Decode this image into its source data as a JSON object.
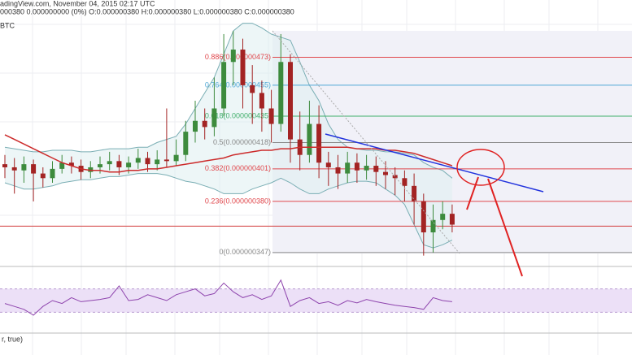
{
  "chart_data": {
    "type": "candlestick",
    "header": {
      "line1": "adingView.com, November 04, 2015 02:17 UTC",
      "line2": "000380 0.000000000 (0%) O:0.000000380 H:0.000000380 L:0.000000380 C:0.000000380",
      "symbol": "BTC"
    },
    "ylim": [
      3.38e-07,
      5.1e-07
    ],
    "up_color": "#3d8b3d",
    "down_color": "#a32323",
    "open": [
      4.04e-07,
      4.02e-07,
      4e-07,
      4.04e-07,
      3.98e-07,
      3.95e-07,
      4.01e-07,
      4.05e-07,
      4.03e-07,
      3.99e-07,
      4.02e-07,
      4.04e-07,
      4.06e-07,
      4.02e-07,
      4.05e-07,
      4.08e-07,
      4.04e-07,
      4.07e-07,
      4.06e-07,
      4.1e-07,
      4.25e-07,
      4.32e-07,
      4.28e-07,
      4.4e-07,
      4.7e-07,
      4.78e-07,
      4.55e-07,
      4.5e-07,
      4.4e-07,
      4.3e-07,
      4.7e-07,
      4.2e-07,
      4.1e-07,
      4.3e-07,
      4.05e-07,
      4.02e-07,
      3.98e-07,
      4.05e-07,
      4e-07,
      4.03e-07,
      3.99e-07,
      3.97e-07,
      3.95e-07,
      3.9e-07,
      3.8e-07,
      3.6e-07,
      3.68e-07,
      3.72e-07
    ],
    "high": [
      4.1e-07,
      4.08e-07,
      4.09e-07,
      4.07e-07,
      4.02e-07,
      4.06e-07,
      4.1e-07,
      4.09e-07,
      4.07e-07,
      4.06e-07,
      4.09e-07,
      4.12e-07,
      4.1e-07,
      4.09e-07,
      4.14e-07,
      4.12e-07,
      4.13e-07,
      4.4e-07,
      4.2e-07,
      4.32e-07,
      4.45e-07,
      4.4e-07,
      4.6e-07,
      4.88e-07,
      4.9e-07,
      4.85e-07,
      4.68e-07,
      4.58e-07,
      4.52e-07,
      4.88e-07,
      4.75e-07,
      4.38e-07,
      4.45e-07,
      4.42e-07,
      4.12e-07,
      4.1e-07,
      4.12e-07,
      4.11e-07,
      4.1e-07,
      4.09e-07,
      4.06e-07,
      4.02e-07,
      4e-07,
      3.98e-07,
      3.85e-07,
      3.78e-07,
      3.8e-07,
      3.78e-07
    ],
    "low": [
      3.95e-07,
      3.85e-07,
      3.92e-07,
      3.8e-07,
      3.89e-07,
      3.92e-07,
      3.98e-07,
      3.98e-07,
      3.94e-07,
      3.95e-07,
      3.98e-07,
      4e-07,
      3.97e-07,
      3.98e-07,
      4.01e-07,
      3.99e-07,
      4e-07,
      4.02e-07,
      4.03e-07,
      4.06e-07,
      4.18e-07,
      4.2e-07,
      4.22e-07,
      4.35e-07,
      4.55e-07,
      4.4e-07,
      4.3e-07,
      4.25e-07,
      4.18e-07,
      4.25e-07,
      4.05e-07,
      4e-07,
      4.05e-07,
      3.95e-07,
      3.9e-07,
      3.88e-07,
      3.92e-07,
      3.92e-07,
      3.94e-07,
      3.9e-07,
      3.88e-07,
      3.84e-07,
      3.8e-07,
      3.65e-07,
      3.45e-07,
      3.47e-07,
      3.62e-07,
      3.6e-07
    ],
    "close": [
      4.02e-07,
      4e-07,
      4.04e-07,
      3.98e-07,
      3.95e-07,
      4.01e-07,
      4.05e-07,
      4.03e-07,
      3.99e-07,
      4.02e-07,
      4.04e-07,
      4.06e-07,
      4.02e-07,
      4.05e-07,
      4.08e-07,
      4.04e-07,
      4.07e-07,
      4.06e-07,
      4.1e-07,
      4.25e-07,
      4.32e-07,
      4.28e-07,
      4.4e-07,
      4.7e-07,
      4.78e-07,
      4.55e-07,
      4.5e-07,
      4.4e-07,
      4.3e-07,
      4.7e-07,
      4.2e-07,
      4.1e-07,
      4.3e-07,
      4.05e-07,
      4.02e-07,
      3.98e-07,
      4.05e-07,
      4e-07,
      4.03e-07,
      3.99e-07,
      3.97e-07,
      3.95e-07,
      3.9e-07,
      3.8e-07,
      3.6e-07,
      3.68e-07,
      3.72e-07,
      3.65e-07
    ],
    "ma": {
      "color": "#cc2a2a",
      "values": [
        4.23e-07,
        4.2e-07,
        4.17e-07,
        4.14e-07,
        4.11e-07,
        4.08e-07,
        4.05e-07,
        4.03e-07,
        4.01e-07,
        4e-07,
        4e-07,
        3.99e-07,
        3.99e-07,
        4e-07,
        4e-07,
        4.01e-07,
        4.01e-07,
        4.02e-07,
        4.03e-07,
        4.04e-07,
        4.05e-07,
        4.06e-07,
        4.07e-07,
        4.08e-07,
        4.1e-07,
        4.11e-07,
        4.12e-07,
        4.13e-07,
        4.13e-07,
        4.14e-07,
        4.14e-07,
        4.15e-07,
        4.15e-07,
        4.15e-07,
        4.15e-07,
        4.15e-07,
        4.15e-07,
        4.14e-07,
        4.14e-07,
        4.14e-07,
        4.13e-07,
        4.13e-07,
        4.12e-07,
        4.11e-07,
        4.09e-07,
        4.07e-07,
        4.05e-07,
        4.03e-07
      ]
    },
    "upper_band": {
      "color": "#7aaeb4",
      "values": [
        4.15e-07,
        4.14e-07,
        4.13e-07,
        4.12e-07,
        4.12e-07,
        4.13e-07,
        4.13e-07,
        4.13e-07,
        4.12e-07,
        4.12e-07,
        4.13e-07,
        4.14e-07,
        4.14e-07,
        4.14e-07,
        4.15e-07,
        4.15e-07,
        4.18e-07,
        4.2e-07,
        4.22e-07,
        4.3e-07,
        4.4e-07,
        4.5e-07,
        4.6e-07,
        4.75e-07,
        4.9e-07,
        4.95e-07,
        4.95e-07,
        4.92e-07,
        4.88e-07,
        4.86e-07,
        4.84e-07,
        4.7e-07,
        4.55e-07,
        4.45e-07,
        4.3e-07,
        4.2e-07,
        4.15e-07,
        4.14e-07,
        4.13e-07,
        4.13e-07,
        4.12e-07,
        4.12e-07,
        4.11e-07,
        4.1e-07,
        4.05e-07,
        4.02e-07,
        4e-07,
        3.95e-07
      ]
    },
    "lower_band": {
      "color": "#7aaeb4",
      "values": [
        3.92e-07,
        3.9e-07,
        3.88e-07,
        3.88e-07,
        3.89e-07,
        3.9e-07,
        3.92e-07,
        3.93e-07,
        3.94e-07,
        3.94e-07,
        3.95e-07,
        3.96e-07,
        3.96e-07,
        3.97e-07,
        3.98e-07,
        3.98e-07,
        3.98e-07,
        3.97e-07,
        3.95e-07,
        3.93e-07,
        3.92e-07,
        3.9e-07,
        3.88e-07,
        3.85e-07,
        3.85e-07,
        3.85e-07,
        3.88e-07,
        3.9e-07,
        3.92e-07,
        3.95e-07,
        3.92e-07,
        3.88e-07,
        3.85e-07,
        3.85e-07,
        3.88e-07,
        3.9e-07,
        3.92e-07,
        3.93e-07,
        3.93e-07,
        3.92e-07,
        3.88e-07,
        3.84e-07,
        3.78e-07,
        3.65e-07,
        3.52e-07,
        3.5e-07,
        3.52e-07,
        3.55e-07
      ]
    },
    "fib_levels": [
      {
        "label": "0.886(0.000000473)",
        "value": 4.73e-07,
        "color": "#e0474c"
      },
      {
        "label": "0.764(0.000000455)",
        "value": 4.55e-07,
        "color": "#4fa8d6"
      },
      {
        "label": "0.618(0.000000435)",
        "value": 4.35e-07,
        "color": "#3fae6a"
      },
      {
        "label": "0.5(0.000000418)",
        "value": 4.18e-07,
        "color": "#888888"
      },
      {
        "label": "0.382(0.000000401)",
        "value": 4.01e-07,
        "color": "#e0474c"
      },
      {
        "label": "0.236(0.000000380)",
        "value": 3.8e-07,
        "color": "#e0474c"
      },
      {
        "label": "0(0.000000347)",
        "value": 3.47e-07,
        "color": "#888888"
      }
    ],
    "support_level": {
      "value": 3.64e-07,
      "color": "#d23c3c"
    },
    "rsi": {
      "color": "#8e44ad",
      "ylim": [
        0,
        100
      ],
      "band": [
        30,
        70
      ],
      "values": [
        45,
        40,
        35,
        25,
        40,
        50,
        45,
        55,
        48,
        50,
        52,
        55,
        75,
        50,
        52,
        60,
        55,
        50,
        60,
        65,
        70,
        58,
        62,
        80,
        65,
        55,
        60,
        52,
        58,
        85,
        40,
        50,
        55,
        45,
        48,
        42,
        50,
        46,
        52,
        48,
        45,
        42,
        40,
        38,
        35,
        55,
        50,
        48
      ]
    },
    "indicator_label": "r, true)"
  }
}
